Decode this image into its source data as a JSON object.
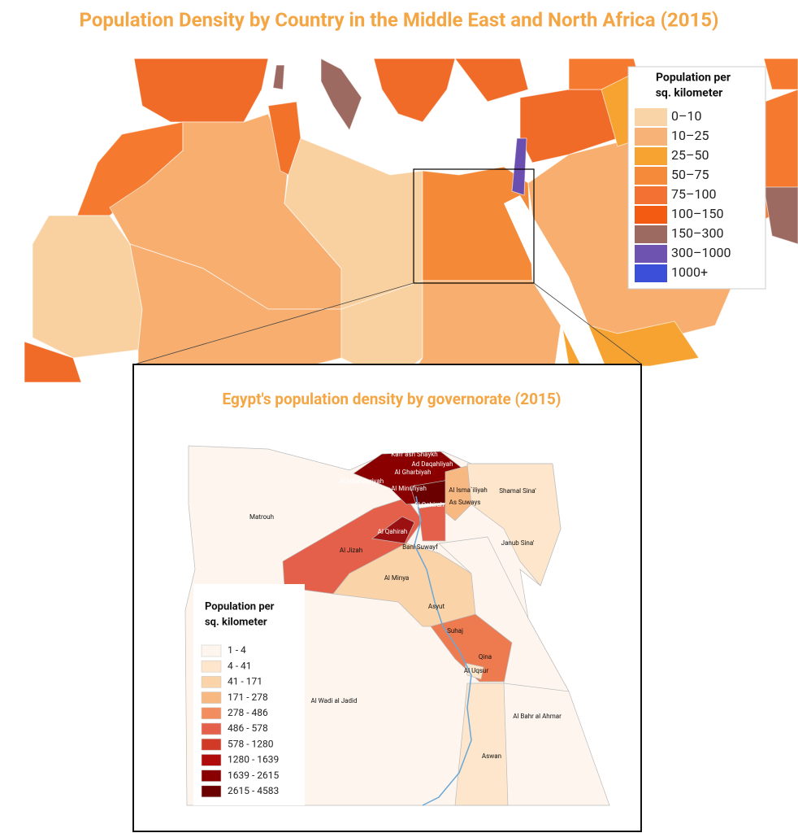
{
  "title": "Population Density by Country in the Middle East and North Africa (2015)",
  "legend": {
    "title_lines": [
      "Population per",
      "sq. kilometer"
    ],
    "items": [
      {
        "label": "0–10",
        "color": "#f9d4a6"
      },
      {
        "label": "10–25",
        "color": "#f7b278"
      },
      {
        "label": "25–50",
        "color": "#f7a331"
      },
      {
        "label": "50–75",
        "color": "#f58a3a"
      },
      {
        "label": "75–100",
        "color": "#f37132"
      },
      {
        "label": "100–150",
        "color": "#f35a12"
      },
      {
        "label": "150–300",
        "color": "#9c6a60"
      },
      {
        "label": "300–1000",
        "color": "#6e54b0"
      },
      {
        "label": "1000+",
        "color": "#3b4fd8"
      }
    ]
  },
  "inset": {
    "title": "Egypt's population density by governorate (2015)",
    "legend": {
      "title_lines": [
        "Population per",
        "sq. kilometer"
      ],
      "items": [
        {
          "label": "1 - 4",
          "color": "#fef6ee"
        },
        {
          "label": "4 - 41",
          "color": "#fde6cc"
        },
        {
          "label": "41 - 171",
          "color": "#fbd3a8"
        },
        {
          "label": "171 - 278",
          "color": "#f8b882"
        },
        {
          "label": "278 - 486",
          "color": "#f28d5f"
        },
        {
          "label": "486 - 578",
          "color": "#e5604a"
        },
        {
          "label": "578 - 1280",
          "color": "#d23a28"
        },
        {
          "label": "1280 - 1639",
          "color": "#b00c0c"
        },
        {
          "label": "1639 - 2615",
          "color": "#8a0000"
        },
        {
          "label": "2615 - 4583",
          "color": "#6a0000"
        }
      ]
    },
    "labels": [
      "Kafr ash Shaykh",
      "Ad Daqahliyah",
      "Al Gharbiyah",
      "Al Iskandariyah",
      "Al Minufiyah",
      "Al Isma`iliyah",
      "Shamal Sina'",
      "Matrouh",
      "Al Qahirah",
      "As Suways",
      "Al Qahirah",
      "Al Jizah",
      "Bani Suwayf",
      "Janub Sina'",
      "Al Minya",
      "Asyut",
      "Suhaj",
      "Qina",
      "Al Uqsur",
      "Al Wadi al Jadid",
      "Al Bahr al Ahmar",
      "Aswan"
    ]
  }
}
